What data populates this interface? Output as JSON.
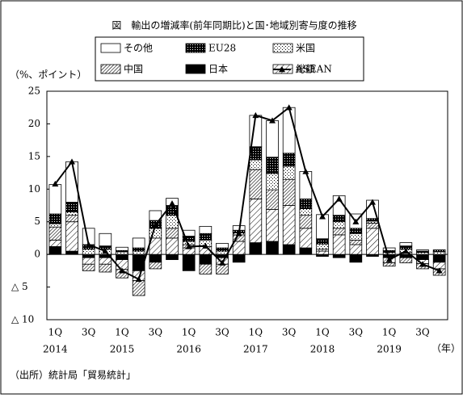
{
  "chart_data": {
    "type": "bar-line",
    "title": "図　輸出の増減率(前年同期比)と国･地域別寄与度の推移",
    "y_axis_label": "（%、ポイント）",
    "x_axis_unit": "（年）",
    "source": "（出所）統計局「貿易統計」",
    "categories": [
      "1Q",
      null,
      "3Q",
      null,
      "1Q",
      null,
      "3Q",
      null,
      "1Q",
      null,
      "3Q",
      null,
      "1Q",
      null,
      "3Q",
      null,
      "1Q",
      null,
      "3Q",
      null,
      "1Q",
      null,
      "3Q",
      null
    ],
    "years": [
      "2014",
      "2015",
      "2016",
      "2017",
      "2018",
      "2019"
    ],
    "series": [
      {
        "name": "その他",
        "pattern": "white",
        "values": [
          4.5,
          6.2,
          2.5,
          1.9,
          0.5,
          1.5,
          1.5,
          1.1,
          0.9,
          1.1,
          0.7,
          0.7,
          4.8,
          5.6,
          7.0,
          4.2,
          3.7,
          3.0,
          2.2,
          2.8,
          0.4,
          0.5,
          0.2,
          0.0
        ]
      },
      {
        "name": "EU28",
        "pattern": "dense-dots",
        "values": [
          1.5,
          1.5,
          0.7,
          0.5,
          0.2,
          0.5,
          1.2,
          1.5,
          0.8,
          1.0,
          0.5,
          0.4,
          2.0,
          2.5,
          2.0,
          1.5,
          0.8,
          1.0,
          0.8,
          0.4,
          0.3,
          0.5,
          0.2,
          0.3
        ]
      },
      {
        "name": "米国",
        "pattern": "sparse-dots",
        "values": [
          0.5,
          0.5,
          0.8,
          0.8,
          0.4,
          0.5,
          1.5,
          2.0,
          0.5,
          1.0,
          0.5,
          0.3,
          1.5,
          2.5,
          2.0,
          1.0,
          0.8,
          1.0,
          1.0,
          0.3,
          0.3,
          0.5,
          0.3,
          0.4
        ]
      },
      {
        "name": "中国",
        "pattern": "dense-hatch",
        "values": [
          2.0,
          1.0,
          -1.0,
          -1.2,
          -1.3,
          -2.3,
          -1.0,
          1.5,
          0.5,
          -1.5,
          -1.5,
          1.0,
          4.5,
          3.0,
          4.0,
          2.0,
          0.3,
          1.0,
          0.7,
          0.8,
          -0.5,
          -0.8,
          -0.8,
          -1.0
        ]
      },
      {
        "name": "日本",
        "pattern": "black",
        "values": [
          1.2,
          0.5,
          -0.5,
          -0.5,
          -0.8,
          -2.5,
          -1.2,
          -0.8,
          -2.5,
          -1.5,
          -0.5,
          -1.2,
          1.8,
          2.0,
          1.5,
          1.0,
          -0.3,
          -0.5,
          -1.2,
          -0.3,
          -0.5,
          -0.5,
          -0.8,
          -1.2
        ]
      },
      {
        "name": "ASEAN",
        "pattern": "hatch",
        "values": [
          1.0,
          4.5,
          -1.0,
          -1.0,
          -1.5,
          -1.5,
          2.5,
          2.5,
          1.0,
          1.2,
          -1.0,
          2.0,
          6.7,
          4.9,
          6.0,
          3.0,
          0.5,
          3.0,
          1.5,
          4.0,
          -0.8,
          0.3,
          -0.6,
          -1.0
        ]
      }
    ],
    "line_series": {
      "name": "総額",
      "color": "#000000",
      "values": [
        10.8,
        14.2,
        1.5,
        0.5,
        -2.5,
        -3.8,
        4.5,
        7.8,
        1.2,
        1.3,
        -1.3,
        3.2,
        21.3,
        20.5,
        22.5,
        12.7,
        5.8,
        8.5,
        5.0,
        8.0,
        -0.8,
        0.5,
        -1.5,
        -2.5
      ]
    },
    "ylim": [
      -10,
      25
    ],
    "yticks": [
      {
        "value": -10,
        "label": "△ 10"
      },
      {
        "value": -5,
        "label": "△ 5"
      },
      0,
      5,
      10,
      15,
      20,
      25
    ]
  }
}
